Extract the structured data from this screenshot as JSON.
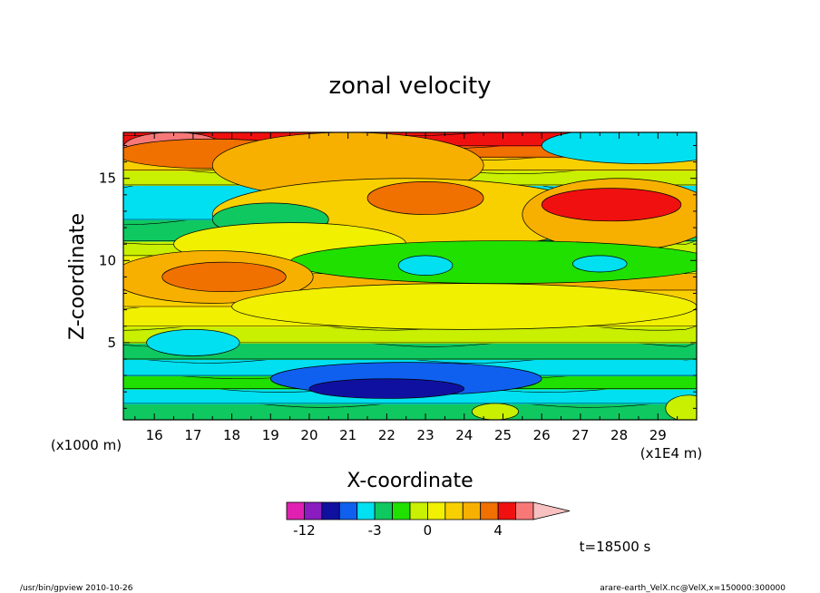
{
  "chart_data": {
    "type": "heatmap",
    "title": "zonal velocity",
    "xlabel": "X-coordinate",
    "ylabel": "Z-coordinate",
    "x_unit_left": "(x1000 m)",
    "x_unit_right": "(x1E4 m)",
    "xlim": [
      15.2,
      30.0
    ],
    "ylim": [
      0.3,
      17.8
    ],
    "x_ticks": [
      "16",
      "17",
      "18",
      "19",
      "20",
      "21",
      "22",
      "23",
      "24",
      "25",
      "26",
      "27",
      "28",
      "29"
    ],
    "y_ticks": [
      "5",
      "10",
      "15"
    ],
    "time_label": "t=18500 s",
    "colorbar": {
      "levels": [
        -15,
        -12,
        -9,
        -6,
        -4,
        -3,
        -2,
        -1,
        0,
        1,
        2,
        3,
        4,
        6,
        9,
        12
      ],
      "tick_labels": [
        {
          "label": "-12",
          "value": -12
        },
        {
          "label": "-3",
          "value": -3
        },
        {
          "label": "0",
          "value": 0
        },
        {
          "label": "4",
          "value": 4
        }
      ],
      "colors": [
        "#e020b0",
        "#8a1cc0",
        "#1010a0",
        "#1060f0",
        "#00e0f0",
        "#10c860",
        "#20e000",
        "#c8f000",
        "#f0f000",
        "#f8d000",
        "#f8b000",
        "#f07000",
        "#f01010",
        "#f87878",
        "#f8c0c0"
      ]
    },
    "bands": [
      {
        "ybot": 0.3,
        "ytop": 1.3,
        "value": -3
      },
      {
        "ybot": 1.3,
        "ytop": 2.2,
        "value": -4
      },
      {
        "ybot": 2.2,
        "ytop": 3.0,
        "value": -2
      },
      {
        "ybot": 3.0,
        "ytop": 4.0,
        "value": -4
      },
      {
        "ybot": 4.0,
        "ytop": 5.0,
        "value": -3
      },
      {
        "ybot": 5.0,
        "ytop": 6.0,
        "value": -1
      },
      {
        "ybot": 6.0,
        "ytop": 7.2,
        "value": 0.5
      },
      {
        "ybot": 7.2,
        "ytop": 8.2,
        "value": 1.5
      },
      {
        "ybot": 8.2,
        "ytop": 9.2,
        "value": 2
      },
      {
        "ybot": 9.2,
        "ytop": 10.3,
        "value": 0.5
      },
      {
        "ybot": 10.3,
        "ytop": 11.2,
        "value": -1
      },
      {
        "ybot": 11.2,
        "ytop": 12.5,
        "value": -3
      },
      {
        "ybot": 12.5,
        "ytop": 14.6,
        "value": -4
      },
      {
        "ybot": 14.6,
        "ytop": 15.5,
        "value": -1
      },
      {
        "ybot": 15.5,
        "ytop": 16.3,
        "value": 1
      },
      {
        "ybot": 16.3,
        "ytop": 17.0,
        "value": 3
      },
      {
        "ybot": 17.0,
        "ytop": 17.8,
        "value": 4
      }
    ],
    "features": [
      {
        "x": 16.5,
        "y": 16.9,
        "rx": 1.3,
        "ry": 0.9,
        "value": 6
      },
      {
        "x": 17.5,
        "y": 16.5,
        "rx": 2.5,
        "ry": 0.9,
        "value": 3
      },
      {
        "x": 21.0,
        "y": 15.8,
        "rx": 3.5,
        "ry": 2.0,
        "value": 2
      },
      {
        "x": 22.5,
        "y": 12.8,
        "rx": 5.0,
        "ry": 2.2,
        "value": 1
      },
      {
        "x": 28.0,
        "y": 12.8,
        "rx": 2.5,
        "ry": 2.2,
        "value": 2
      },
      {
        "x": 23.0,
        "y": 13.8,
        "rx": 1.5,
        "ry": 1.0,
        "value": 3
      },
      {
        "x": 27.8,
        "y": 13.4,
        "rx": 1.8,
        "ry": 1.0,
        "value": 4
      },
      {
        "x": 28.5,
        "y": 17.0,
        "rx": 2.5,
        "ry": 1.1,
        "value": -4
      },
      {
        "x": 19.0,
        "y": 12.5,
        "rx": 1.5,
        "ry": 1.0,
        "value": -3
      },
      {
        "x": 19.5,
        "y": 11.0,
        "rx": 3.0,
        "ry": 1.3,
        "value": 0.5
      },
      {
        "x": 25.0,
        "y": 9.9,
        "rx": 5.5,
        "ry": 1.3,
        "value": -2
      },
      {
        "x": 23.0,
        "y": 9.7,
        "rx": 0.7,
        "ry": 0.6,
        "value": -4
      },
      {
        "x": 27.5,
        "y": 9.8,
        "rx": 0.7,
        "ry": 0.5,
        "value": -4
      },
      {
        "x": 17.5,
        "y": 9.0,
        "rx": 2.6,
        "ry": 1.6,
        "value": 2
      },
      {
        "x": 17.8,
        "y": 9.0,
        "rx": 1.6,
        "ry": 0.9,
        "value": 3
      },
      {
        "x": 24.0,
        "y": 7.2,
        "rx": 6.0,
        "ry": 1.4,
        "value": 0.5
      },
      {
        "x": 17.0,
        "y": 5.0,
        "rx": 1.2,
        "ry": 0.8,
        "value": -4
      },
      {
        "x": 22.5,
        "y": 2.8,
        "rx": 3.5,
        "ry": 1.0,
        "value": -6
      },
      {
        "x": 22.0,
        "y": 2.2,
        "rx": 2.0,
        "ry": 0.6,
        "value": -9
      },
      {
        "x": 24.8,
        "y": 0.8,
        "rx": 0.6,
        "ry": 0.5,
        "value": -1
      },
      {
        "x": 29.8,
        "y": 1.0,
        "rx": 0.6,
        "ry": 0.8,
        "value": -1
      }
    ]
  },
  "footer": {
    "left": "/usr/bin/gpview  2010-10-26",
    "right": "arare-earth_VelX.nc@VelX,x=150000:300000"
  }
}
